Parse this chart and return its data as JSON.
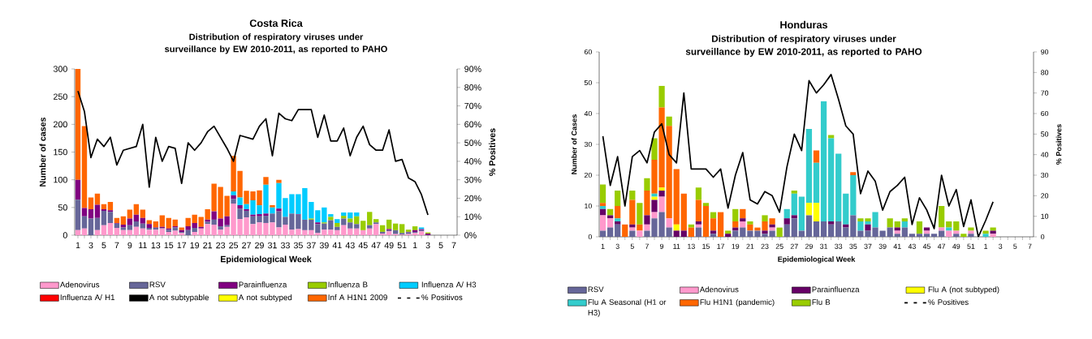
{
  "chart_data": [
    {
      "type": "bar",
      "stacked": true,
      "title": "Costa Rica",
      "subtitle": "Distribution of respiratory viruses under surveillance by EW 2010-2011, as reported to PAHO",
      "xlabel": "Epidemiological Week",
      "ylabel": "Number of cases",
      "y2label": "% Positives",
      "categories": [
        "1",
        null,
        "3",
        null,
        "5",
        null,
        "7",
        null,
        "9",
        null,
        "11",
        null,
        "13",
        null,
        "15",
        null,
        "17",
        null,
        "19",
        null,
        "21",
        null,
        "23",
        null,
        "25",
        null,
        "27",
        null,
        "29",
        null,
        "31",
        null,
        "33",
        null,
        "35",
        null,
        "37",
        null,
        "39",
        null,
        "41",
        null,
        "43",
        null,
        "45",
        null,
        "47",
        null,
        "49",
        null,
        "51",
        null,
        "1",
        null,
        "3",
        null,
        "5",
        null,
        "7"
      ],
      "series": [
        {
          "name": "Adenovirus",
          "color": "#ff99cc",
          "values": [
            9,
            12,
            0,
            9,
            18,
            22,
            13,
            9,
            9,
            15,
            12,
            10,
            10,
            12,
            6,
            8,
            4,
            0,
            6,
            12,
            20,
            19,
            10,
            15,
            57,
            29,
            32,
            20,
            23,
            22,
            23,
            14,
            19,
            10,
            11,
            9,
            9,
            4,
            10,
            10,
            9,
            18,
            12,
            12,
            9,
            12,
            20,
            3,
            7,
            2,
            1,
            2,
            4,
            7,
            0,
            0,
            0,
            0,
            0
          ]
        },
        {
          "name": "RSV",
          "color": "#666699",
          "values": [
            55,
            22,
            30,
            22,
            26,
            20,
            8,
            5,
            9,
            10,
            9,
            3,
            3,
            1,
            4,
            6,
            2,
            9,
            7,
            0,
            4,
            9,
            6,
            3,
            8,
            19,
            12,
            14,
            11,
            13,
            16,
            29,
            14,
            29,
            26,
            19,
            19,
            16,
            11,
            17,
            6,
            12,
            11,
            8,
            0,
            6,
            3,
            3,
            2,
            7,
            3,
            3,
            2,
            2,
            0,
            0,
            0,
            0,
            0
          ]
        },
        {
          "name": "Parainfluenza",
          "color": "#800080",
          "values": [
            36,
            15,
            17,
            24,
            3,
            3,
            1,
            5,
            12,
            12,
            10,
            7,
            1,
            2,
            2,
            2,
            3,
            7,
            9,
            3,
            4,
            15,
            14,
            16,
            7,
            6,
            3,
            3,
            4,
            4,
            0,
            5,
            0,
            null,
            1,
            0,
            0,
            3,
            0,
            0,
            0,
            0,
            0,
            0,
            0,
            0,
            0,
            0,
            2,
            0,
            0,
            1,
            3,
            2,
            3,
            0,
            0,
            0,
            0
          ]
        },
        {
          "name": "Influenza  B",
          "color": "#99cc00",
          "values": [
            0,
            0,
            0,
            0,
            0,
            0,
            0,
            0,
            0,
            0,
            0,
            0,
            0,
            0,
            0,
            0,
            0,
            0,
            0,
            0,
            0,
            0,
            0,
            0,
            0,
            0,
            0,
            0,
            0,
            0,
            0,
            0,
            0,
            0,
            0,
            0,
            2,
            0,
            2,
            6,
            7,
            5,
            7,
            14,
            17,
            24,
            6,
            12,
            17,
            12,
            16,
            4,
            7,
            null,
            2,
            0,
            0,
            0,
            0
          ]
        },
        {
          "name": "Influenza A/ H3",
          "color": "#00ccff",
          "values": [
            0,
            0,
            0,
            0,
            0,
            0,
            0,
            0,
            0,
            0,
            0,
            0,
            0,
            0,
            0,
            0,
            0,
            0,
            0,
            0,
            0,
            0,
            0,
            0,
            7,
            14,
            9,
            26,
            16,
            52,
            11,
            46,
            34,
            35,
            36,
            57,
            30,
            22,
            27,
            5,
            7,
            6,
            11,
            7,
            null,
            0,
            0,
            0,
            0,
            0,
            0,
            0,
            0,
            3,
            0,
            0,
            0,
            0,
            0
          ]
        },
        {
          "name": "Influenza A/ H1",
          "color": "#ff0000",
          "values": [
            0,
            0,
            0,
            0,
            0,
            0,
            0,
            0,
            0,
            0,
            0,
            0,
            0,
            0,
            0,
            0,
            0,
            0,
            0,
            0,
            0,
            0,
            0,
            0,
            0,
            0,
            0,
            0,
            0,
            0,
            0,
            0,
            0,
            0,
            0,
            0,
            0,
            0,
            0,
            0,
            0,
            0,
            0,
            0,
            0,
            0,
            0,
            0,
            0,
            0,
            0,
            0,
            0,
            0,
            0,
            0,
            0,
            0,
            0
          ]
        },
        {
          "name": "A not subtypable",
          "color": "#000000",
          "values": [
            0,
            0,
            0,
            0,
            0,
            0,
            0,
            0,
            0,
            0,
            0,
            0,
            0,
            0,
            0,
            0,
            0,
            0,
            0,
            0,
            0,
            0,
            0,
            0,
            0,
            0,
            0,
            0,
            0,
            0,
            0,
            0,
            0,
            0,
            0,
            0,
            0,
            0,
            0,
            0,
            0,
            0,
            0,
            0,
            0,
            0,
            0,
            0,
            0,
            0,
            0,
            0,
            0,
            0,
            0,
            0,
            0,
            0,
            0
          ]
        },
        {
          "name": "A not subtyped",
          "color": "#ffff00",
          "values": [
            0,
            0,
            0,
            0,
            0,
            0,
            0,
            0,
            0,
            0,
            0,
            0,
            0,
            0,
            0,
            0,
            0,
            0,
            0,
            0,
            0,
            0,
            0,
            0,
            0,
            0,
            0,
            0,
            0,
            0,
            0,
            0,
            0,
            0,
            0,
            0,
            0,
            0,
            0,
            0,
            0,
            0,
            0,
            0,
            0,
            0,
            0,
            0,
            0,
            0,
            0,
            0,
            0,
            0,
            0,
            0,
            0,
            0,
            0
          ]
        },
        {
          "name": "Inf A H1N1 2009",
          "color": "#ff6600",
          "values": [
            200,
            148,
            21,
            20,
            9,
            15,
            9,
            15,
            16,
            19,
            15,
            7,
            11,
            21,
            19,
            12,
            5,
            15,
            15,
            18,
            19,
            50,
            57,
            37,
            64,
            48,
            24,
            16,
            27,
            14,
            4,
            6,
            0,
            0,
            0,
            0,
            0,
            0,
            0,
            0,
            0,
            0,
            0,
            0,
            0,
            0,
            0,
            0,
            0,
            0,
            0,
            0,
            0,
            0,
            0,
            0,
            0,
            0,
            0
          ]
        },
        {
          "name": "% Positivos",
          "type": "line",
          "axis": "y2",
          "color": "#000000",
          "values": [
            78,
            67,
            42,
            52,
            48,
            53,
            38,
            46,
            47,
            48,
            60,
            26,
            53,
            40,
            48,
            47,
            28,
            50,
            46,
            50,
            56,
            59,
            53,
            47,
            40,
            54,
            53,
            52,
            59,
            63,
            43,
            66,
            63,
            62,
            68,
            68,
            68,
            53,
            65,
            51,
            51,
            58,
            43,
            53,
            59,
            49,
            46,
            46,
            57,
            40,
            41,
            31,
            29,
            22,
            11,
            null,
            null,
            null,
            null
          ]
        }
      ],
      "ylim": [
        0,
        300
      ],
      "yticks": [
        0,
        50,
        100,
        150,
        200,
        250,
        300
      ],
      "y2lim": [
        0,
        90
      ],
      "y2ticks": [
        {
          "value": 0,
          "label": "0%"
        },
        {
          "value": 10,
          "label": "10%"
        },
        {
          "value": 20,
          "label": "20%"
        },
        {
          "value": 30,
          "label": "30%"
        },
        {
          "value": 40,
          "label": "40%"
        },
        {
          "value": 50,
          "label": "50%"
        },
        {
          "value": 60,
          "label": "60%"
        },
        {
          "value": 70,
          "label": "70%"
        },
        {
          "value": 80,
          "label": "80%"
        },
        {
          "value": 90,
          "label": "90%"
        }
      ],
      "legend": "bottom"
    },
    {
      "type": "bar",
      "stacked": true,
      "title": "Honduras",
      "subtitle": "Distribution of respiratory viruses under surveillance by EW 2010-2011, as reported to PAHO",
      "xlabel": "Epidemiological Week",
      "ylabel": "Number of Cases",
      "y2label": "% Positives",
      "categories": [
        "1",
        null,
        "3",
        null,
        "5",
        null,
        "7",
        null,
        "9",
        null,
        "11",
        null,
        "13",
        null,
        "15",
        null,
        "17",
        null,
        "19",
        null,
        "21",
        null,
        "23",
        null,
        "25",
        null,
        "27",
        null,
        "29",
        null,
        "31",
        null,
        "33",
        null,
        "35",
        null,
        "37",
        null,
        "39",
        null,
        "41",
        null,
        "43",
        null,
        "45",
        null,
        "47",
        null,
        "49",
        null,
        "51",
        null,
        "1",
        null,
        "3",
        null,
        "5",
        null,
        "7"
      ],
      "series": [
        {
          "name": "RSV",
          "color": "#666699",
          "values": [
            2,
            3,
            4,
            0,
            2,
            0,
            2,
            6,
            8,
            3,
            0,
            0,
            0,
            3,
            0,
            1,
            0,
            0,
            2,
            3,
            2,
            2,
            1,
            2,
            0,
            4,
            6,
            2,
            7,
            5,
            5,
            4,
            5,
            3,
            7,
            2,
            2,
            3,
            2,
            3,
            1,
            3,
            1,
            1,
            1,
            1,
            2,
            0,
            1,
            0,
            1,
            0,
            0,
            0,
            0,
            0,
            0,
            0,
            0
          ]
        },
        {
          "name": "Adenovirus",
          "color": "#ff99cc",
          "values": [
            5,
            3,
            0,
            0,
            1,
            2,
            2,
            2,
            5,
            3,
            0,
            0,
            0,
            1,
            0,
            0,
            0,
            0,
            0,
            2,
            0,
            0,
            0,
            1,
            0,
            0,
            0,
            0,
            0,
            0,
            0,
            0,
            0,
            0,
            0,
            0,
            0,
            0,
            0,
            0,
            1,
            0,
            0,
            0,
            1,
            0,
            1,
            2,
            1,
            0,
            1,
            0,
            0,
            1,
            0,
            0,
            0,
            0,
            0
          ]
        },
        {
          "name": "Parainfluenza",
          "color": "#660066",
          "values": [
            2,
            1,
            1,
            0,
            1,
            0,
            3,
            4,
            2,
            0,
            2,
            2,
            0,
            1,
            0,
            1,
            0,
            1,
            1,
            1,
            0,
            0,
            1,
            1,
            0,
            2,
            1,
            0,
            0,
            0,
            0,
            1,
            0,
            1,
            0,
            0,
            2,
            0,
            0,
            0,
            1,
            0,
            0,
            0,
            1,
            0,
            0,
            0,
            0,
            0,
            0,
            0,
            0,
            1,
            0,
            0,
            0,
            0,
            0
          ]
        },
        {
          "name": "Flu A (not subtyped)",
          "color": "#ffff00",
          "values": [
            0,
            0,
            0,
            0,
            0,
            0,
            0,
            1,
            1,
            0,
            2,
            0,
            0,
            0,
            0,
            0,
            0,
            0,
            0,
            0,
            0,
            0,
            0,
            0,
            0,
            0,
            0,
            0,
            4,
            6,
            0,
            0,
            0,
            0,
            0,
            0,
            0,
            0,
            0,
            0,
            0,
            0,
            0,
            0,
            0,
            0,
            0,
            0,
            0,
            0,
            0,
            0,
            0,
            0,
            0,
            0,
            0,
            0,
            0
          ]
        },
        {
          "name": "Flu A Seasonal (H1 or H3)",
          "color": "#33cccc",
          "values": [
            1,
            0,
            1,
            0,
            0,
            0,
            0,
            1,
            0,
            0,
            0,
            0,
            0,
            0,
            0,
            0,
            0,
            0,
            0,
            0,
            0,
            0,
            0,
            0,
            0,
            3,
            7,
            11,
            24,
            13,
            39,
            27,
            22,
            10,
            13,
            3,
            1,
            5,
            0,
            0,
            0,
            2,
            0,
            0,
            0,
            0,
            0,
            1,
            0,
            0,
            0,
            0,
            1,
            0,
            0,
            0,
            0,
            0,
            0
          ]
        },
        {
          "name": "Flu H1N1 (pandemic)",
          "color": "#ff6600",
          "values": [
            1,
            0,
            4,
            4,
            8,
            2,
            8,
            11,
            26,
            30,
            18,
            12,
            3,
            7,
            10,
            4,
            8,
            0,
            2,
            3,
            2,
            1,
            3,
            2,
            0,
            0,
            0,
            0,
            0,
            4,
            0,
            0,
            0,
            0,
            1,
            0,
            0,
            0,
            0,
            0,
            0,
            0,
            0,
            0,
            0,
            0,
            0,
            0,
            0,
            0,
            0,
            0,
            0,
            0,
            0,
            0,
            0,
            0,
            0
          ]
        },
        {
          "name": "Flu B",
          "color": "#99cc00",
          "values": [
            6,
            2,
            5,
            0,
            3,
            7,
            4,
            7,
            7,
            3,
            0,
            0,
            1,
            4,
            1,
            2,
            0,
            1,
            4,
            0,
            1,
            0,
            2,
            0,
            3,
            0,
            1,
            0,
            0,
            0,
            0,
            1,
            0,
            0,
            0,
            1,
            1,
            0,
            0,
            3,
            2,
            1,
            0,
            4,
            0,
            0,
            7,
            2,
            3,
            1,
            1,
            0,
            1,
            1,
            0,
            0,
            0,
            0,
            0
          ]
        },
        {
          "name": "% Positives",
          "type": "line",
          "axis": "y2",
          "color": "#000000",
          "values": [
            49,
            25,
            39,
            15,
            39,
            42,
            36,
            51,
            55,
            40,
            36,
            70,
            33,
            33,
            33,
            29,
            33,
            14,
            30,
            41,
            18,
            16,
            22,
            20,
            12,
            34,
            50,
            42,
            76,
            70,
            74,
            79,
            67,
            54,
            50,
            21,
            32,
            27,
            13,
            22,
            25,
            29,
            6,
            19,
            13,
            4,
            30,
            15,
            23,
            5,
            18,
            0,
            8,
            17,
            null,
            null,
            null,
            null,
            null
          ]
        }
      ],
      "ylim": [
        0,
        60
      ],
      "yticks": [
        0,
        10,
        20,
        30,
        40,
        50,
        60
      ],
      "y2lim": [
        0,
        90
      ],
      "y2ticks": [
        0,
        10,
        20,
        30,
        40,
        50,
        60,
        70,
        80,
        90
      ],
      "legend": "bottom"
    }
  ]
}
